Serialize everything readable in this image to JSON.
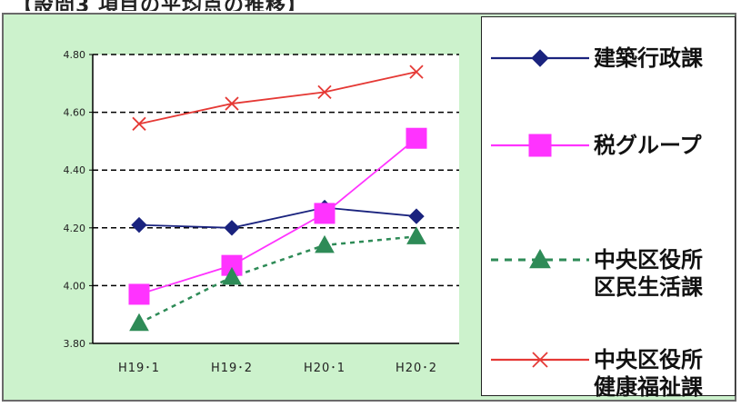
{
  "title": "【設問3 項目の平均点の推移】",
  "chart_data": {
    "type": "line",
    "categories": [
      "H19･1",
      "H19･2",
      "H20･1",
      "H20･2"
    ],
    "ylim": [
      3.8,
      4.8
    ],
    "yticks": [
      "3.80",
      "4.00",
      "4.20",
      "4.40",
      "4.60",
      "4.80"
    ],
    "ytick_values": [
      3.8,
      4.0,
      4.2,
      4.4,
      4.6,
      4.8
    ],
    "grid": "horizontal-dashed",
    "legend_position": "right",
    "series": [
      {
        "name": [
          "建築行政課"
        ],
        "values": [
          4.21,
          4.2,
          4.27,
          4.24
        ],
        "color": "#1a237e",
        "marker": "diamond",
        "dash": "solid"
      },
      {
        "name": [
          "税グループ"
        ],
        "values": [
          3.97,
          4.07,
          4.25,
          4.51
        ],
        "color": "#ff33ff",
        "marker": "square",
        "dash": "solid"
      },
      {
        "name": [
          "中央区役所",
          "区民生活課"
        ],
        "values": [
          3.87,
          4.03,
          4.14,
          4.17
        ],
        "color": "#2e8b57",
        "marker": "triangle",
        "dash": "dashed"
      },
      {
        "name": [
          "中央区役所",
          "健康福祉課"
        ],
        "values": [
          4.56,
          4.63,
          4.67,
          4.74
        ],
        "color": "#e53935",
        "marker": "cross",
        "dash": "solid"
      }
    ]
  }
}
